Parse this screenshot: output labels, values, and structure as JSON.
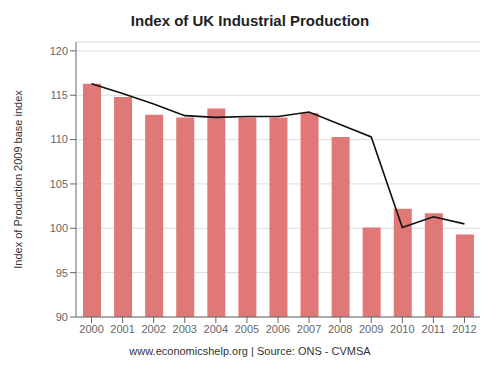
{
  "chart_data": {
    "type": "bar",
    "title": "Index of UK Industrial Production",
    "ylabel": "Index of Production 2009 base index",
    "annotations": [
      "www.economicshelp.org | Source: ONS  - CVMSA"
    ],
    "categories": [
      "2000",
      "2001",
      "2002",
      "2003",
      "2004",
      "2005",
      "2006",
      "2007",
      "2008",
      "2009",
      "2010",
      "2011",
      "2012"
    ],
    "series": [
      {
        "type": "bar",
        "color": "#e07878",
        "values": [
          116.3,
          114.8,
          112.8,
          112.5,
          113.5,
          112.5,
          112.5,
          113.0,
          110.3,
          100.1,
          102.2,
          101.7,
          99.3
        ]
      },
      {
        "type": "line",
        "color": "#111111",
        "values": [
          116.3,
          115.2,
          114.0,
          112.7,
          112.5,
          112.6,
          112.6,
          113.1,
          111.7,
          110.3,
          100.1,
          101.3,
          100.5
        ]
      }
    ],
    "ylim": [
      90,
      121
    ],
    "yticks": [
      90,
      95,
      100,
      105,
      110,
      115,
      120
    ],
    "grid": "y"
  }
}
